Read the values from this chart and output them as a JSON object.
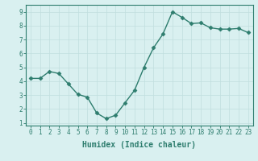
{
  "x": [
    0,
    1,
    2,
    3,
    4,
    5,
    6,
    7,
    8,
    9,
    10,
    11,
    12,
    13,
    14,
    15,
    16,
    17,
    18,
    19,
    20,
    21,
    22,
    23
  ],
  "y": [
    4.2,
    4.2,
    4.7,
    4.55,
    3.8,
    3.05,
    2.85,
    1.7,
    1.3,
    1.55,
    2.45,
    3.35,
    5.0,
    6.4,
    7.4,
    9.0,
    8.6,
    8.15,
    8.2,
    7.85,
    7.75,
    7.75,
    7.8,
    7.5
  ],
  "line_color": "#2e7d6e",
  "marker": "D",
  "markersize": 2.5,
  "linewidth": 1.0,
  "xlabel": "Humidex (Indice chaleur)",
  "xlabel_fontsize": 7,
  "xlabel_fontweight": "bold",
  "xlim": [
    -0.5,
    23.5
  ],
  "ylim": [
    0.8,
    9.5
  ],
  "yticks": [
    1,
    2,
    3,
    4,
    5,
    6,
    7,
    8,
    9
  ],
  "xticks": [
    0,
    1,
    2,
    3,
    4,
    5,
    6,
    7,
    8,
    9,
    10,
    11,
    12,
    13,
    14,
    15,
    16,
    17,
    18,
    19,
    20,
    21,
    22,
    23
  ],
  "bg_color": "#d9f0f0",
  "grid_color": "#c0dede",
  "tick_color": "#2e7d6e",
  "tick_fontsize": 5.5,
  "spine_color": "#2e7d6e"
}
